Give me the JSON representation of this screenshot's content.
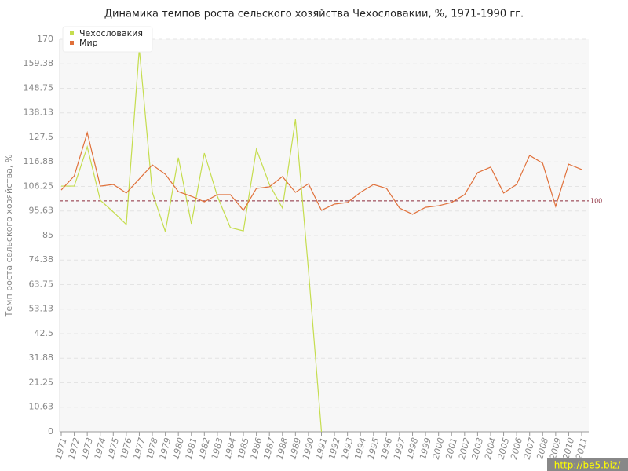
{
  "chart_data": {
    "type": "line",
    "title": "Динамика темпов роста сельского хозяйства Чехословакии, %, 1971-1990 гг.",
    "y_label": "Темп роста сельского хозяйства, %",
    "categories": [
      "1971",
      "1972",
      "1973",
      "1974",
      "1975",
      "1976",
      "1977",
      "1978",
      "1979",
      "1980",
      "1981",
      "1982",
      "1983",
      "1984",
      "1985",
      "1986",
      "1987",
      "1988",
      "1989",
      "1990",
      "1991",
      "1992",
      "1993",
      "1994",
      "1995",
      "1996",
      "1997",
      "1998",
      "1999",
      "2000",
      "2001",
      "2002",
      "2003",
      "2004",
      "2005",
      "2006",
      "2007",
      "2008",
      "2009",
      "2010",
      "2011"
    ],
    "series": [
      {
        "name": "Чехословакия",
        "color": "#c5dd4e",
        "values": [
          106.4,
          106.4,
          123.4,
          100.3,
          95.2,
          89.8,
          165.9,
          103.7,
          86.7,
          118.7,
          90.1,
          120.7,
          102,
          88.4,
          87,
          122.4,
          107.1,
          96.9,
          135.3,
          70,
          0,
          null,
          null,
          null,
          null,
          null,
          null,
          null,
          null,
          null,
          null,
          null,
          null,
          null,
          null,
          null,
          null,
          null,
          null,
          null,
          null
        ]
      },
      {
        "name": "Мир",
        "color": "#e0703a",
        "values": [
          104.7,
          110.8,
          129.5,
          106.4,
          107.1,
          103.4,
          109.5,
          115.6,
          111.5,
          104,
          102,
          99.6,
          102.7,
          102.7,
          95.9,
          105.4,
          106.1,
          110.5,
          103.7,
          107.4,
          95.9,
          98.6,
          99.3,
          103.7,
          107.1,
          105.4,
          96.9,
          94.2,
          97.2,
          97.9,
          99.3,
          102.7,
          112.2,
          114.6,
          103.4,
          107.1,
          119.7,
          116.3,
          97.6,
          115.9,
          113.6
        ]
      }
    ],
    "reference_line": 100,
    "ylim": [
      0,
      170
    ],
    "yticks": [
      0,
      10.63,
      21.25,
      31.88,
      42.5,
      53.13,
      63.75,
      74.38,
      85,
      95.63,
      106.25,
      116.88,
      127.5,
      138.13,
      148.75,
      159.38,
      170
    ],
    "grid": true,
    "legend": "top-left",
    "watermark": "http://be5.biz/"
  }
}
